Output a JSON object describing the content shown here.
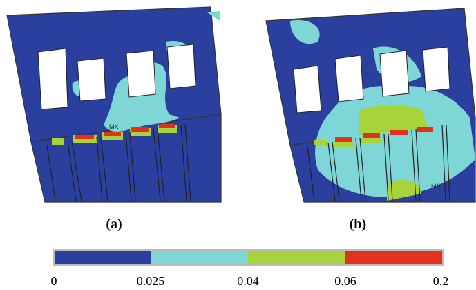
{
  "panels": [
    {
      "label": "(a)",
      "marker": "MX"
    },
    {
      "label": "(b)",
      "marker": "MN"
    }
  ],
  "colorbar": {
    "ticks": [
      0,
      0.025,
      0.04,
      0.06,
      0.2
    ]
  }
}
